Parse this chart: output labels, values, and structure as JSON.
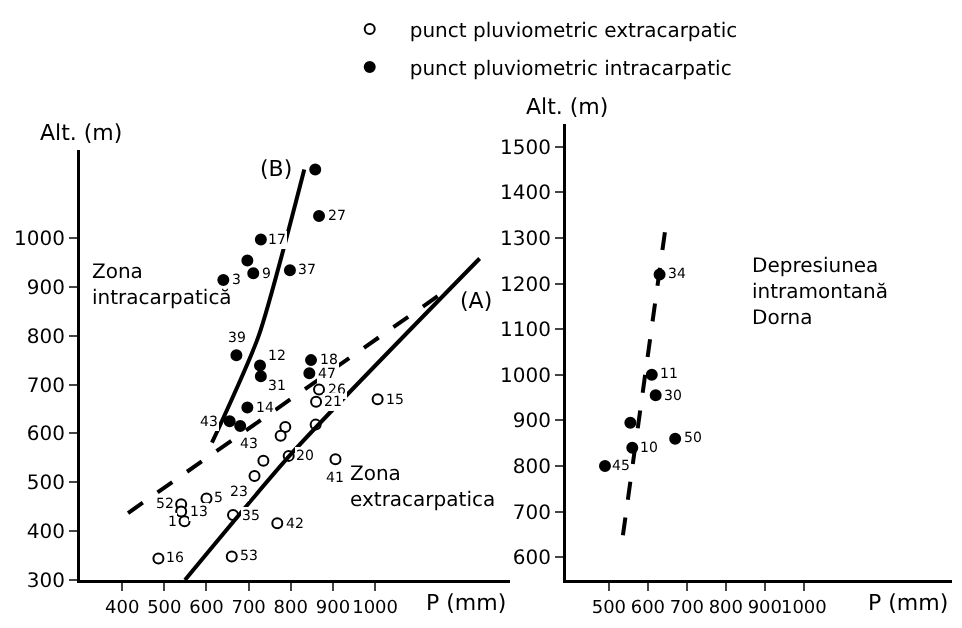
{
  "chart_data": [
    {
      "type": "scatter",
      "xlabel": "P (mm)",
      "ylabel": "Alt. (m)",
      "xlim": [
        300,
        1320
      ],
      "ylim": [
        300,
        1180
      ],
      "xticks": [
        400,
        500,
        600,
        700,
        800,
        900,
        1000
      ],
      "yticks": [
        300,
        400,
        500,
        600,
        700,
        800,
        900,
        1000
      ],
      "legend": "top",
      "grid": false,
      "marker": "circle",
      "series": [
        {
          "name": "punct pluviometric extracarpatic",
          "color": "#ffffff",
          "x": [
            1006,
            859,
            867,
            860,
            795,
            906,
            787,
            776,
            735,
            714,
            600,
            540,
            540,
            548,
            663,
            768,
            486,
            660
          ],
          "values": [
            670,
            618,
            690,
            665,
            554,
            547,
            613,
            595,
            544,
            513,
            467,
            455,
            440,
            420,
            433,
            416,
            344,
            348
          ]
        },
        {
          "name": "punct pluviometric intracarpatic",
          "color": "#000000",
          "x": [
            858,
            867,
            729,
            697,
            711,
            640,
            798,
            671,
            727,
            729,
            848,
            844,
            697,
            655,
            680
          ],
          "values": [
            1140,
            1045,
            997,
            954,
            928,
            914,
            934,
            760,
            739,
            717,
            750,
            723,
            653,
            625,
            615
          ]
        },
        {
          "type": "line",
          "color": "#000000",
          "line_style": "solid",
          "marker": "none",
          "x": [
            613,
            724,
            832
          ],
          "values": [
            581,
            800,
            1140
          ]
        },
        {
          "type": "line",
          "color": "#000000",
          "line_style": "solid",
          "marker": "none",
          "x": [
            549,
            803,
            1248
          ],
          "values": [
            300,
            560,
            958
          ]
        },
        {
          "type": "line",
          "color": "#000000",
          "line_style": "dashed",
          "marker": "none",
          "x": [
            414,
            1152
          ],
          "values": [
            437,
            883
          ]
        }
      ],
      "annotations": [
        {
          "text": "(A)",
          "x": 1248,
          "y": 958
        },
        {
          "text": "(B)",
          "x": 832,
          "y": 1140
        },
        "Zona\nintracarpatică",
        "Zona\nextracarpatica",
        {
          "text": "15",
          "x": 1006,
          "y": 670
        },
        {
          "text": "26",
          "x": 867,
          "y": 690
        },
        {
          "text": "21",
          "x": 860,
          "y": 665
        },
        {
          "text": "20",
          "x": 795,
          "y": 554
        },
        {
          "text": "41",
          "x": 906,
          "y": 547
        },
        {
          "text": "43",
          "x": 735,
          "y": 544
        },
        {
          "text": "23",
          "x": 714,
          "y": 513
        },
        {
          "text": "5",
          "x": 600,
          "y": 467
        },
        {
          "text": "52",
          "x": 540,
          "y": 455
        },
        {
          "text": "13",
          "x": 540,
          "y": 440
        },
        {
          "text": "1",
          "x": 548,
          "y": 420
        },
        {
          "text": "35",
          "x": 663,
          "y": 433
        },
        {
          "text": "42",
          "x": 768,
          "y": 416
        },
        {
          "text": "16",
          "x": 486,
          "y": 344
        },
        {
          "text": "53",
          "x": 660,
          "y": 348
        },
        {
          "text": "27",
          "x": 867,
          "y": 1045
        },
        {
          "text": "17",
          "x": 729,
          "y": 997
        },
        {
          "text": "9",
          "x": 711,
          "y": 928
        },
        {
          "text": "3",
          "x": 640,
          "y": 914
        },
        {
          "text": "37",
          "x": 798,
          "y": 934
        },
        {
          "text": "39",
          "x": 671,
          "y": 760
        },
        {
          "text": "12",
          "x": 727,
          "y": 739
        },
        {
          "text": "31",
          "x": 729,
          "y": 717
        },
        {
          "text": "18",
          "x": 848,
          "y": 750
        },
        {
          "text": "47",
          "x": 844,
          "y": 723
        },
        {
          "text": "14",
          "x": 697,
          "y": 653
        },
        {
          "text": "43",
          "x": 655,
          "y": 625
        }
      ]
    },
    {
      "type": "scatter",
      "xlabel": "P (mm)",
      "ylabel": "Alt. (m)",
      "xlim": [
        390,
        1380
      ],
      "ylim": [
        550,
        1550
      ],
      "xticks": [
        500,
        600,
        700,
        800,
        900,
        1000
      ],
      "yticks": [
        600,
        700,
        800,
        900,
        1000,
        1100,
        1200,
        1300,
        1400,
        1500
      ],
      "grid": false,
      "marker": "circle",
      "series": [
        {
          "color": "#000000",
          "x": [
            630,
            610,
            620,
            555,
            560,
            670,
            490
          ],
          "values": [
            1220,
            1000,
            955,
            895,
            840,
            860,
            800
          ]
        },
        {
          "type": "line",
          "color": "#000000",
          "line_style": "dashed",
          "marker": "none",
          "x": [
            536,
            644
          ],
          "values": [
            648,
            1315
          ]
        }
      ],
      "annotations": [
        "Depresiunea\nintramontană\nDorna",
        {
          "text": "34",
          "x": 630,
          "y": 1220
        },
        {
          "text": "11",
          "x": 610,
          "y": 1000
        },
        {
          "text": "30",
          "x": 620,
          "y": 955
        },
        {
          "text": "10",
          "x": 560,
          "y": 840
        },
        {
          "text": "50",
          "x": 670,
          "y": 860
        },
        {
          "text": "45",
          "x": 490,
          "y": 800
        }
      ]
    }
  ]
}
